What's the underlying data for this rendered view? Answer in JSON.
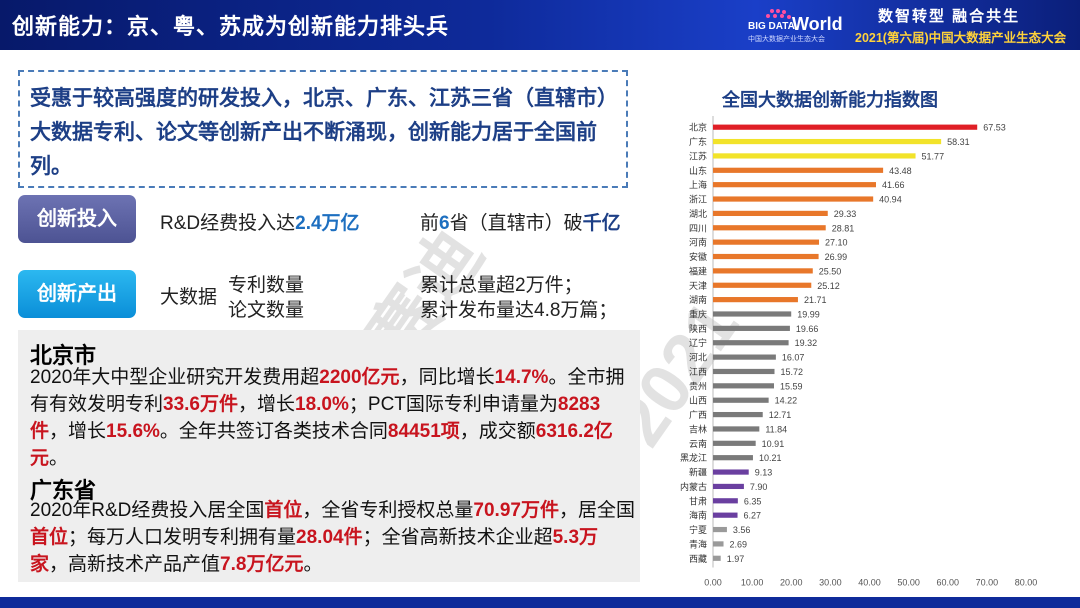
{
  "header": {
    "title": "创新能力：京、粤、苏成为创新能力排头兵",
    "logo_brand": "BIG DATA",
    "logo_world": "World",
    "logo_sub": "中国大数据产业生态大会",
    "slogan": "数智转型 融合共生",
    "conference": "2021(第六届)中国大数据产业生态大会"
  },
  "intro": {
    "text": "受惠于较高强度的研发投入，北京、广东、江苏三省（直辖市）大数据专利、论文等创新产出不断涌现，创新能力居于全国前列。"
  },
  "invest": {
    "tag": "创新投入",
    "left_prefix": "R&D经费投入达",
    "left_value": "2.4万亿",
    "right_prefix": "前",
    "right_num": "6",
    "right_mid": "省（直辖市）破",
    "right_value": "千亿"
  },
  "output": {
    "tag": "创新产出",
    "label": "大数据",
    "item1": "专利数量",
    "item2": "论文数量",
    "stat1": "累计总量超2万件；",
    "stat2": "累计发布量达4.8万篇；"
  },
  "beijing": {
    "title": "北京市",
    "p1_a": "2020年大中型企业研究开发费用超",
    "p1_b": "2200亿元",
    "p1_c": "，同比增长",
    "p1_d": "14.7%",
    "p1_e": "。",
    "p2_a": "全市拥有有效发明专利",
    "p2_b": "33.6万件",
    "p2_c": "，增长",
    "p2_d": "18.0%",
    "p2_e": "；PCT国际专利申请量为",
    "p2_f": "8283件",
    "p2_g": "，增长",
    "p2_h": "15.6%",
    "p2_i": "。全年共签订各类技术合同",
    "p2_j": "84451项",
    "p2_k": "，成交额",
    "p2_l": "6316.2亿元",
    "p2_m": "。"
  },
  "guangdong": {
    "title": "广东省",
    "p_a": "2020年R&D经费投入居全国",
    "p_b": "首位",
    "p_c": "，全省专利授权总量",
    "p_d": "70.97万件",
    "p_e": "，居全国",
    "p_f": "首位",
    "p_g": "；每万人口发明专利拥有量",
    "p_h": "28.04件",
    "p_i": "；全省高新技术企业超",
    "p_j": "5.3万家",
    "p_k": "，高新技术产品产值",
    "p_l": "7.8万亿元",
    "p_m": "。"
  },
  "watermarks": [
    "ccid赛迪",
    "ccid-2021"
  ],
  "chart_title": "全国大数据创新能力指数图",
  "chart_data": {
    "type": "bar",
    "orientation": "horizontal",
    "title": "全国大数据创新能力指数图",
    "categories": [
      "北京",
      "广东",
      "江苏",
      "山东",
      "上海",
      "浙江",
      "湖北",
      "四川",
      "河南",
      "安徽",
      "福建",
      "天津",
      "湖南",
      "重庆",
      "陕西",
      "辽宁",
      "河北",
      "江西",
      "贵州",
      "山西",
      "广西",
      "吉林",
      "云南",
      "黑龙江",
      "新疆",
      "内蒙古",
      "甘肃",
      "海南",
      "宁夏",
      "青海",
      "西藏"
    ],
    "values": [
      67.53,
      58.31,
      51.77,
      43.48,
      41.66,
      40.94,
      29.33,
      28.81,
      27.1,
      26.99,
      25.5,
      25.12,
      21.71,
      19.99,
      19.66,
      19.32,
      16.07,
      15.72,
      15.59,
      14.22,
      12.71,
      11.84,
      10.91,
      10.21,
      9.13,
      7.9,
      6.35,
      6.27,
      3.56,
      2.69,
      1.97
    ],
    "value_labels": [
      "67.53",
      "58.31",
      "51.77",
      "43.48",
      "41.66",
      "40.94",
      "29.33",
      "28.81",
      "27.10",
      "26.99",
      "25.50",
      "25.12",
      "21.71",
      "19.99",
      "19.66",
      "19.32",
      "16.07",
      "15.72",
      "15.59",
      "14.22",
      "12.71",
      "11.84",
      "10.91",
      "10.21",
      "9.13",
      "7.90",
      "6.35",
      "6.27",
      "3.56",
      "2.69",
      "1.97"
    ],
    "xlim": [
      0,
      80
    ],
    "xticks": [
      "0.00",
      "10.00",
      "20.00",
      "30.00",
      "40.00",
      "50.00",
      "60.00",
      "70.00",
      "80.00"
    ],
    "grid": false,
    "colors": {
      "tier1": "#e01f26",
      "tier2": "#f2e32a",
      "tier3": "#e8772a",
      "tier4": "#7a7a7a",
      "tier5": "#6a3fa0",
      "tier6": "#9a9a9a"
    },
    "tiers": [
      1,
      2,
      2,
      3,
      3,
      3,
      3,
      3,
      3,
      3,
      3,
      3,
      3,
      4,
      4,
      4,
      4,
      4,
      4,
      4,
      4,
      4,
      4,
      4,
      5,
      5,
      5,
      5,
      6,
      6,
      6
    ]
  }
}
